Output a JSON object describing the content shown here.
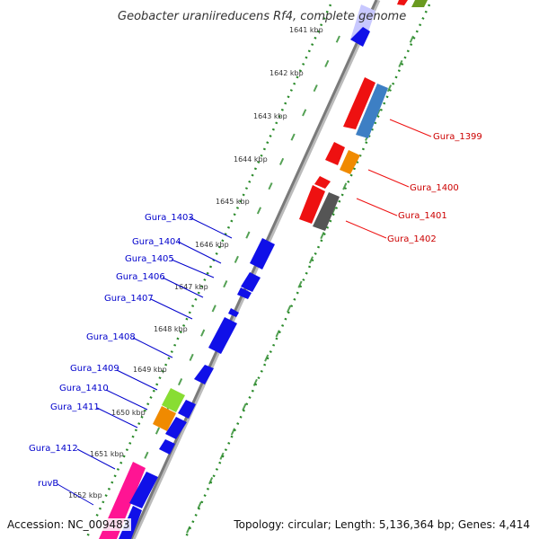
{
  "title": "Geobacter uraniireducens Rf4, complete genome",
  "accession_label": "Accession: NC_009483",
  "topology_label": "Topology: circular; Length: 5,136,364 bp; Genes: 4,414",
  "ticks": [
    "1641 kbp",
    "1642 kbp",
    "1643 kbp",
    "1644 kbp",
    "1645 kbp",
    "1646 kbp",
    "1647 kbp",
    "1648 kbp",
    "1649 kbp",
    "1650 kbp",
    "1651 kbp",
    "1652 kbp"
  ],
  "forward_genes": [
    {
      "label": "Gura_1399",
      "color": "#d44040"
    },
    {
      "label": "Gura_1400",
      "color": "#d44040"
    },
    {
      "label": "Gura_1401",
      "color": "#d44040"
    },
    {
      "label": "Gura_1402",
      "color": "#d44040"
    }
  ],
  "reverse_genes": [
    {
      "label": "Gura_1403",
      "color": "#0000cc"
    },
    {
      "label": "Gura_1404",
      "color": "#0000cc"
    },
    {
      "label": "Gura_1405",
      "color": "#0000cc"
    },
    {
      "label": "Gura_1406",
      "color": "#0000cc"
    },
    {
      "label": "Gura_1407",
      "color": "#0000cc"
    },
    {
      "label": "Gura_1408",
      "color": "#0000cc"
    },
    {
      "label": "Gura_1409",
      "color": "#0000cc"
    },
    {
      "label": "Gura_1410",
      "color": "#0000cc"
    },
    {
      "label": "Gura_1411",
      "color": "#0000cc"
    },
    {
      "label": "Gura_1412",
      "color": "#0000cc"
    },
    {
      "label": "ruvB",
      "color": "#0000cc"
    }
  ],
  "colors": {
    "cds": "#1010e8",
    "cds_red": "#ee1111",
    "cds_blue_gray": "#3d7fc4",
    "cds_orange": "#f08a00",
    "cds_gray": "#555555",
    "cds_green": "#88dd33",
    "cds_pink": "#ff1493",
    "cds_light": "#c8c8ff",
    "backbone": "#8a8a8a",
    "dots": "#2a8a2a"
  }
}
